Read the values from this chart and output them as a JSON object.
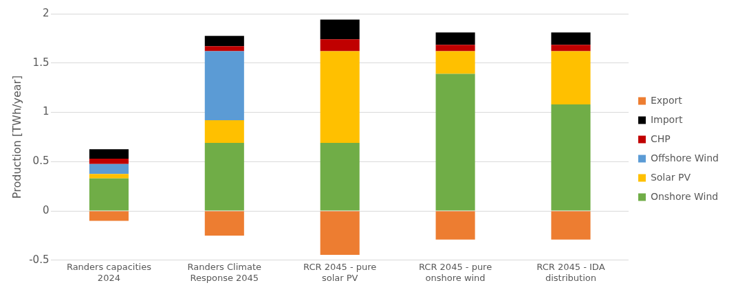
{
  "chart_data": {
    "type": "bar",
    "ylabel": "Production [TWh/year]",
    "stacked": true,
    "legend": "right",
    "grid": "y",
    "categories": [
      "Randers capacities 2024",
      "Randers Climate Response 2045",
      "RCR 2045 - pure solar PV",
      "RCR 2045 - pure onshore wind",
      "RCR 2045 - IDA distribution"
    ],
    "ylim": [
      -0.5,
      2
    ],
    "yticks": [
      -0.5,
      0,
      0.5,
      1,
      1.5,
      2
    ],
    "series": [
      {
        "name": "Onshore Wind",
        "color": "#70ad47",
        "values": [
          0.33,
          0.69,
          0.69,
          1.39,
          1.08
        ]
      },
      {
        "name": "Solar PV",
        "color": "#ffc000",
        "values": [
          0.045,
          0.23,
          0.93,
          0.23,
          0.54
        ]
      },
      {
        "name": "Offshore Wind",
        "color": "#5b9bd5",
        "values": [
          0.1,
          0.7,
          null,
          null,
          null
        ]
      },
      {
        "name": "CHP",
        "color": "#c00000",
        "values": [
          0.055,
          0.05,
          0.12,
          0.065,
          0.065
        ]
      },
      {
        "name": "Import",
        "color": "#000000",
        "values": [
          0.095,
          0.105,
          0.2,
          0.125,
          0.125
        ]
      },
      {
        "name": "Export",
        "color": "#ed7d31",
        "values": [
          -0.1,
          -0.25,
          -0.445,
          -0.29,
          -0.29
        ]
      }
    ]
  }
}
